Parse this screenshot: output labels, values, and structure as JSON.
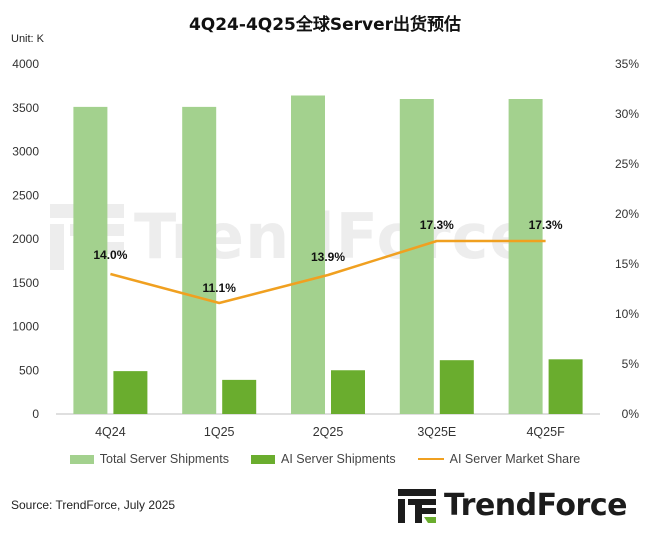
{
  "title": "4Q24-4Q25全球Server出货预估",
  "unit_label": "Unit: K",
  "source": "Source: TrendForce, July 2025",
  "brand": {
    "name": "TrendForce",
    "watermark": "TrendForce"
  },
  "chart_data": {
    "type": "bar",
    "categories": [
      "4Q24",
      "1Q25",
      "2Q25",
      "3Q25E",
      "4Q25F"
    ],
    "series": [
      {
        "name": "Total Server Shipments",
        "type": "bar",
        "axis": "left",
        "color": "#a3d18e",
        "values": [
          3510,
          3510,
          3640,
          3600,
          3600
        ]
      },
      {
        "name": "AI Server Shipments",
        "type": "bar",
        "axis": "left",
        "color": "#6aad2e",
        "values": [
          490,
          390,
          500,
          615,
          625
        ]
      },
      {
        "name": "AI Server Market Share",
        "type": "line",
        "axis": "right",
        "color": "#f0a020",
        "values": [
          14.0,
          11.1,
          13.9,
          17.3,
          17.3
        ],
        "labels": [
          "14.0%",
          "11.1%",
          "13.9%",
          "17.3%",
          "17.3%"
        ]
      }
    ],
    "y_left": {
      "range": [
        0,
        4000
      ],
      "ticks": [
        "0",
        "500",
        "1000",
        "1500",
        "2000",
        "2500",
        "3000",
        "3500",
        "4000"
      ]
    },
    "y_right": {
      "range": [
        0,
        35
      ],
      "ticks": [
        "0%",
        "5%",
        "10%",
        "15%",
        "20%",
        "25%",
        "30%",
        "35%"
      ]
    },
    "grid": false,
    "legend_position": "bottom"
  }
}
